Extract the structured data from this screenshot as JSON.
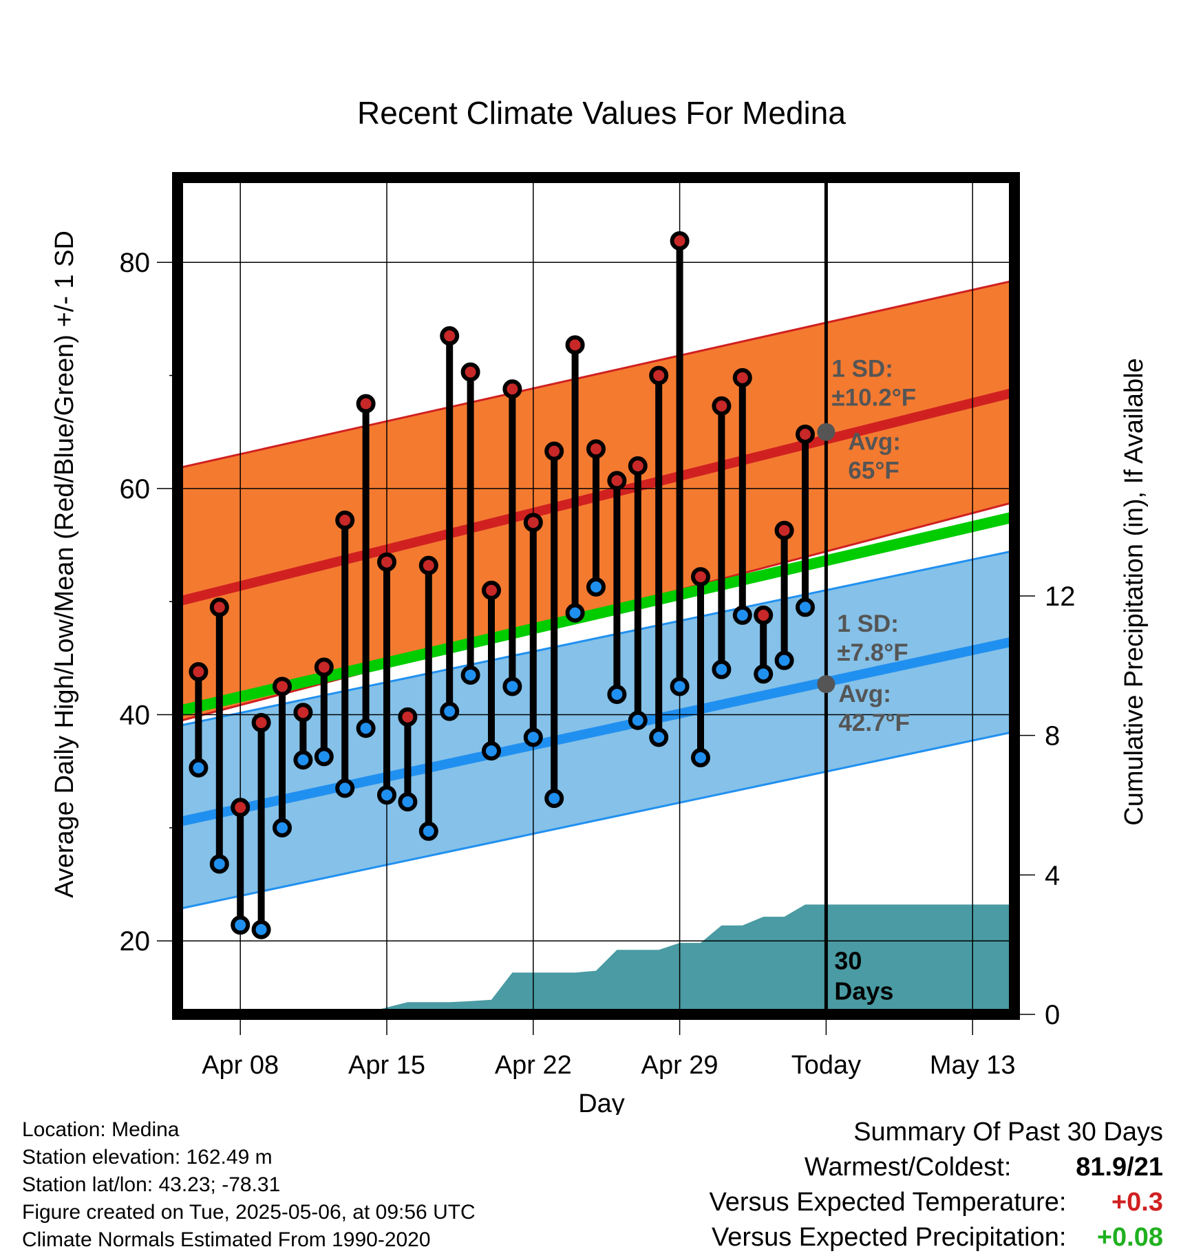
{
  "chart_data": {
    "type": "line",
    "title": "Recent Climate Values For Medina",
    "xlabel": "Day",
    "ylabel_left": "Average Daily High/Low/Mean (Red/Blue/Green) +/- 1 SD",
    "ylabel_right": "Cumulative Precipitation (in), If Available",
    "x_tick_labels": [
      "Apr 08",
      "Apr 15",
      "Apr 22",
      "Apr 29",
      "Today",
      "May 13"
    ],
    "x_tick_dates": [
      "2025-04-08",
      "2025-04-15",
      "2025-04-22",
      "2025-04-29",
      "2025-05-06",
      "2025-05-13"
    ],
    "x_range": [
      "2025-04-05",
      "2025-05-15"
    ],
    "y_left_ticks": [
      20,
      40,
      60,
      80
    ],
    "y_left_range": [
      13.5,
      87.5
    ],
    "y_right_ticks": [
      0,
      4,
      8,
      12
    ],
    "y_right_range": [
      0,
      24
    ],
    "grid": true,
    "today_line": "2025-05-06",
    "today_marker_label": "30\nDays",
    "colors": {
      "high_band": "#f47a30",
      "high_line": "#d02020",
      "low_band": "#85c1e8",
      "low_line": "#2090f0",
      "mean_line": "#00cc00",
      "precip": "#4a9ba3",
      "high_dot": "#c82828",
      "low_dot": "#2090f0",
      "annot_text": "#555555",
      "positive_temp": "#d02020",
      "positive_precip": "#20b020"
    },
    "normals": {
      "dates": [
        "2025-04-05",
        "2025-05-15"
      ],
      "high_avg": [
        50.0,
        68.5
      ],
      "high_upper": [
        61.8,
        78.4
      ],
      "high_lower": [
        39.4,
        58.8
      ],
      "low_avg": [
        30.5,
        46.5
      ],
      "low_upper": [
        39.0,
        54.5
      ],
      "low_lower": [
        22.8,
        38.5
      ],
      "mean_avg": [
        40.3,
        57.5
      ]
    },
    "annotations": {
      "high_sd": "1 SD:\n±10.2°F",
      "high_avg": "Avg:\n65°F",
      "low_sd": "1 SD:\n±7.8°F",
      "low_avg": "Avg:\n42.7°F",
      "high_avg_value": 65,
      "low_avg_value": 42.7
    },
    "daily": {
      "dates": [
        "2025-04-06",
        "2025-04-07",
        "2025-04-08",
        "2025-04-09",
        "2025-04-10",
        "2025-04-11",
        "2025-04-12",
        "2025-04-13",
        "2025-04-14",
        "2025-04-15",
        "2025-04-16",
        "2025-04-17",
        "2025-04-18",
        "2025-04-19",
        "2025-04-20",
        "2025-04-21",
        "2025-04-22",
        "2025-04-23",
        "2025-04-24",
        "2025-04-25",
        "2025-04-26",
        "2025-04-27",
        "2025-04-28",
        "2025-04-29",
        "2025-04-30",
        "2025-05-01",
        "2025-05-02",
        "2025-05-03",
        "2025-05-04",
        "2025-05-05"
      ],
      "high": [
        43.8,
        49.5,
        31.8,
        39.3,
        42.5,
        40.2,
        44.2,
        57.2,
        67.5,
        53.5,
        39.8,
        53.2,
        73.5,
        70.3,
        51.0,
        68.8,
        57.0,
        63.3,
        72.7,
        63.5,
        60.7,
        62.0,
        70.0,
        81.9,
        52.2,
        67.3,
        69.8,
        48.8,
        56.3,
        64.8
      ],
      "low": [
        35.3,
        26.8,
        21.4,
        21.0,
        30.0,
        36.0,
        36.3,
        33.5,
        38.8,
        32.9,
        32.3,
        29.7,
        40.3,
        43.5,
        36.8,
        42.5,
        38.0,
        32.6,
        49.0,
        51.3,
        41.8,
        39.5,
        38.0,
        42.5,
        36.2,
        44.0,
        48.8,
        43.6,
        44.8,
        49.5
      ]
    },
    "precip": {
      "dates": [
        "2025-04-05",
        "2025-04-08",
        "2025-04-11",
        "2025-04-12",
        "2025-04-13",
        "2025-04-14",
        "2025-04-15",
        "2025-04-16",
        "2025-04-17",
        "2025-04-18",
        "2025-04-19",
        "2025-04-20",
        "2025-04-21",
        "2025-04-22",
        "2025-04-23",
        "2025-04-24",
        "2025-04-25",
        "2025-04-26",
        "2025-04-27",
        "2025-04-28",
        "2025-04-29",
        "2025-04-30",
        "2025-05-01",
        "2025-05-02",
        "2025-05-03",
        "2025-05-04",
        "2025-05-05",
        "2025-05-06",
        "2025-05-15"
      ],
      "values": [
        0,
        0,
        0.05,
        0.05,
        0.05,
        0.05,
        0.2,
        0.35,
        0.35,
        0.35,
        0.38,
        0.42,
        1.2,
        1.2,
        1.2,
        1.2,
        1.25,
        1.85,
        1.85,
        1.85,
        2.05,
        2.05,
        2.55,
        2.55,
        2.8,
        2.8,
        3.15,
        3.15,
        3.15
      ]
    },
    "legend": "none"
  },
  "info": {
    "location": "Location: Medina",
    "elevation": "Station elevation: 162.49 m",
    "latlon": "Station lat/lon: 43.23; -78.31",
    "created": "Figure created on Tue, 2025-05-06, at 09:56 UTC",
    "normals": "Climate Normals Estimated From 1990-2020"
  },
  "summary": {
    "title": "Summary Of Past 30 Days",
    "warm_cold_label": "Warmest/Coldest:",
    "warm_cold_value": "81.9/21",
    "temp_label": "Versus Expected Temperature:",
    "temp_value": "+0.3",
    "precip_label": "Versus Expected Precipitation:",
    "precip_value": "+0.08"
  }
}
